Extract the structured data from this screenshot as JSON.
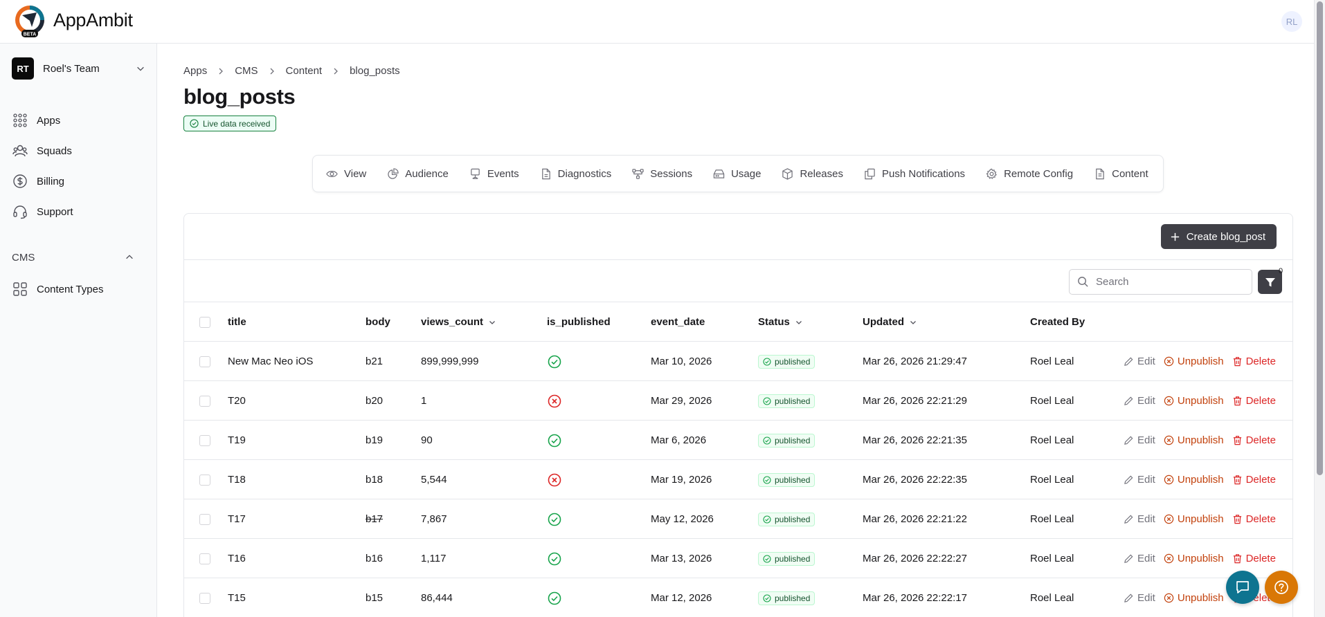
{
  "app": {
    "brand": "AppAmbit",
    "logo_badge": "BETA",
    "user_initials": "RL"
  },
  "sidebar": {
    "team": {
      "initials": "RT",
      "name": "Roel's Team"
    },
    "items": [
      {
        "label": "Apps",
        "icon": "grid-dots-icon"
      },
      {
        "label": "Squads",
        "icon": "users-icon"
      },
      {
        "label": "Billing",
        "icon": "dollar-circle-icon"
      },
      {
        "label": "Support",
        "icon": "headset-icon"
      }
    ],
    "cms": {
      "label": "CMS",
      "items": [
        {
          "label": "Content Types",
          "icon": "layout-grid-icon"
        }
      ]
    }
  },
  "breadcrumb": [
    "Apps",
    "CMS",
    "Content",
    "blog_posts"
  ],
  "page": {
    "title": "blog_posts",
    "badge": "Live data received"
  },
  "tabs": [
    {
      "label": "View",
      "icon": "eye-icon"
    },
    {
      "label": "Audience",
      "icon": "pie-chart-icon"
    },
    {
      "label": "Events",
      "icon": "monitor-icon"
    },
    {
      "label": "Diagnostics",
      "icon": "file-icon"
    },
    {
      "label": "Sessions",
      "icon": "network-icon"
    },
    {
      "label": "Usage",
      "icon": "hard-drive-icon"
    },
    {
      "label": "Releases",
      "icon": "package-icon"
    },
    {
      "label": "Push Notifications",
      "icon": "copy-icon"
    },
    {
      "label": "Remote Config",
      "icon": "gear-icon"
    },
    {
      "label": "Content",
      "icon": "file-text-icon"
    }
  ],
  "toolbar": {
    "create_label": "Create blog_post",
    "search_placeholder": "Search",
    "filter_count": "0"
  },
  "table": {
    "columns": [
      "title",
      "body",
      "views_count",
      "is_published",
      "event_date",
      "Status",
      "Updated",
      "Created By"
    ],
    "actions": {
      "edit": "Edit",
      "unpublish": "Unpublish",
      "delete": "Delete"
    },
    "rows": [
      {
        "title": "New Mac Neo iOS",
        "body": "b21",
        "views_count": "899,999,999",
        "is_published": true,
        "event_date": "Mar 10, 2026",
        "status": "published",
        "updated": "Mar 26, 2026 21:29:47",
        "created_by": "Roel Leal"
      },
      {
        "title": "T20",
        "body": "b20",
        "views_count": "1",
        "is_published": false,
        "event_date": "Mar 29, 2026",
        "status": "published",
        "updated": "Mar 26, 2026 22:21:29",
        "created_by": "Roel Leal"
      },
      {
        "title": "T19",
        "body": "b19",
        "views_count": "90",
        "is_published": true,
        "event_date": "Mar 6, 2026",
        "status": "published",
        "updated": "Mar 26, 2026 22:21:35",
        "created_by": "Roel Leal"
      },
      {
        "title": "T18",
        "body": "b18",
        "views_count": "5,544",
        "is_published": false,
        "event_date": "Mar 19, 2026",
        "status": "published",
        "updated": "Mar 26, 2026 22:22:35",
        "created_by": "Roel Leal"
      },
      {
        "title": "T17",
        "body": "b17",
        "body_strikethrough": true,
        "views_count": "7,867",
        "is_published": true,
        "event_date": "May 12, 2026",
        "status": "published",
        "updated": "Mar 26, 2026 22:21:22",
        "created_by": "Roel Leal"
      },
      {
        "title": "T16",
        "body": "b16",
        "views_count": "1,117",
        "is_published": true,
        "event_date": "Mar 13, 2026",
        "status": "published",
        "updated": "Mar 26, 2026 22:22:27",
        "created_by": "Roel Leal"
      },
      {
        "title": "T15",
        "body": "b15",
        "views_count": "86,444",
        "is_published": true,
        "event_date": "Mar 12, 2026",
        "status": "published",
        "updated": "Mar 26, 2026 22:22:17",
        "created_by": "Roel Leal"
      }
    ]
  },
  "colors": {
    "published_green": "#16a34a",
    "unpublished_red": "#dc2626",
    "unpublish_orange": "#c2410c",
    "chat_fab": "#0e7490",
    "help_fab": "#d97706"
  }
}
